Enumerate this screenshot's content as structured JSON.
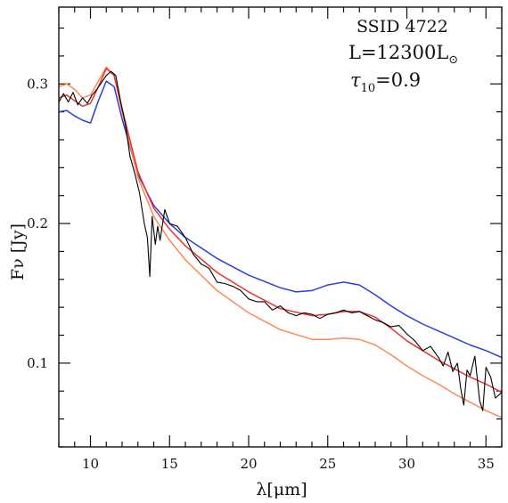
{
  "chart_data": {
    "type": "line",
    "xlabel": "λ[μm]",
    "ylabel": "Fν [Jy]",
    "xlim": [
      8,
      36
    ],
    "ylim": [
      0.04,
      0.355
    ],
    "x_ticks": [
      10,
      15,
      20,
      25,
      30,
      35
    ],
    "x_tick_labels": [
      "10",
      "15",
      "20",
      "25",
      "30",
      "35"
    ],
    "y_ticks": [
      0.1,
      0.2,
      0.3
    ],
    "y_tick_labels": [
      "0.1",
      "0.2",
      "0.3"
    ],
    "annotation": {
      "line1": "SSID 4722",
      "line2_main": "L=12300L",
      "line2_sub": "⊙",
      "line3_tau": "τ",
      "line3_sub": "10",
      "line3_val": "=0.9"
    },
    "series": [
      {
        "color": "#000000",
        "x": [
          8,
          8.3,
          8.6,
          8.9,
          9.2,
          9.5,
          9.8,
          10.1,
          10.4,
          10.7,
          11.0,
          11.3,
          11.6,
          11.9,
          12.2,
          12.5,
          12.8,
          13.1,
          13.4,
          13.6,
          13.75,
          13.9,
          14.1,
          14.25,
          14.4,
          14.7,
          15.0,
          15.5,
          16,
          16.5,
          17,
          17.5,
          18,
          18.5,
          19,
          19.5,
          20,
          20.5,
          21,
          21.5,
          22,
          22.5,
          23,
          23.5,
          24,
          24.5,
          25,
          25.5,
          26,
          26.5,
          27,
          27.5,
          28,
          28.5,
          29,
          29.5,
          30,
          30.5,
          31,
          31.5,
          32,
          32.3,
          32.6,
          32.9,
          33.2,
          33.4,
          33.6,
          33.8,
          34.0,
          34.3,
          34.6,
          34.8,
          35.0,
          35.3,
          35.6,
          36
        ],
        "y": [
          0.287,
          0.293,
          0.287,
          0.294,
          0.285,
          0.29,
          0.286,
          0.292,
          0.296,
          0.301,
          0.306,
          0.309,
          0.306,
          0.288,
          0.272,
          0.248,
          0.236,
          0.222,
          0.2,
          0.19,
          0.162,
          0.205,
          0.185,
          0.198,
          0.188,
          0.21,
          0.2,
          0.198,
          0.19,
          0.178,
          0.171,
          0.168,
          0.158,
          0.157,
          0.155,
          0.152,
          0.146,
          0.144,
          0.144,
          0.138,
          0.141,
          0.136,
          0.134,
          0.136,
          0.135,
          0.132,
          0.135,
          0.136,
          0.138,
          0.136,
          0.137,
          0.134,
          0.131,
          0.129,
          0.126,
          0.127,
          0.121,
          0.116,
          0.109,
          0.112,
          0.104,
          0.098,
          0.108,
          0.094,
          0.1,
          0.082,
          0.07,
          0.095,
          0.091,
          0.105,
          0.073,
          0.066,
          0.097,
          0.09,
          0.075,
          0.079
        ]
      },
      {
        "color": "#e8342f",
        "x": [
          8,
          8.5,
          9,
          9.5,
          10,
          10.5,
          11,
          11.5,
          12,
          13,
          14,
          15,
          16,
          18,
          20,
          22,
          24,
          25,
          26,
          27,
          28,
          29,
          30,
          31,
          32,
          33,
          34,
          35,
          36
        ],
        "y": [
          0.29,
          0.292,
          0.288,
          0.284,
          0.286,
          0.298,
          0.311,
          0.306,
          0.282,
          0.237,
          0.211,
          0.196,
          0.184,
          0.165,
          0.151,
          0.139,
          0.134,
          0.135,
          0.137,
          0.137,
          0.133,
          0.125,
          0.116,
          0.109,
          0.102,
          0.096,
          0.09,
          0.085,
          0.079
        ]
      },
      {
        "color": "#ff8a50",
        "x": [
          8,
          8.5,
          9,
          9.5,
          10,
          10.5,
          11,
          11.5,
          12,
          13,
          14,
          15,
          16,
          18,
          20,
          22,
          24,
          25,
          26,
          27,
          28,
          29,
          30,
          31,
          32,
          33,
          34,
          35,
          36
        ],
        "y": [
          0.298,
          0.3,
          0.296,
          0.29,
          0.292,
          0.302,
          0.312,
          0.306,
          0.28,
          0.233,
          0.205,
          0.188,
          0.174,
          0.152,
          0.136,
          0.124,
          0.117,
          0.117,
          0.118,
          0.117,
          0.113,
          0.106,
          0.098,
          0.091,
          0.085,
          0.078,
          0.072,
          0.066,
          0.061
        ]
      },
      {
        "color": "#2a3de0",
        "x": [
          8,
          8.5,
          9,
          9.5,
          10,
          10.5,
          11,
          11.5,
          12,
          13,
          14,
          15,
          16,
          18,
          20,
          22,
          23,
          24,
          25,
          26,
          27,
          28,
          29,
          30,
          31,
          32,
          33,
          34,
          35,
          36
        ],
        "y": [
          0.28,
          0.281,
          0.277,
          0.274,
          0.272,
          0.288,
          0.302,
          0.298,
          0.275,
          0.235,
          0.213,
          0.2,
          0.19,
          0.175,
          0.163,
          0.154,
          0.151,
          0.152,
          0.156,
          0.158,
          0.156,
          0.149,
          0.141,
          0.134,
          0.128,
          0.123,
          0.118,
          0.113,
          0.109,
          0.104
        ]
      }
    ]
  }
}
